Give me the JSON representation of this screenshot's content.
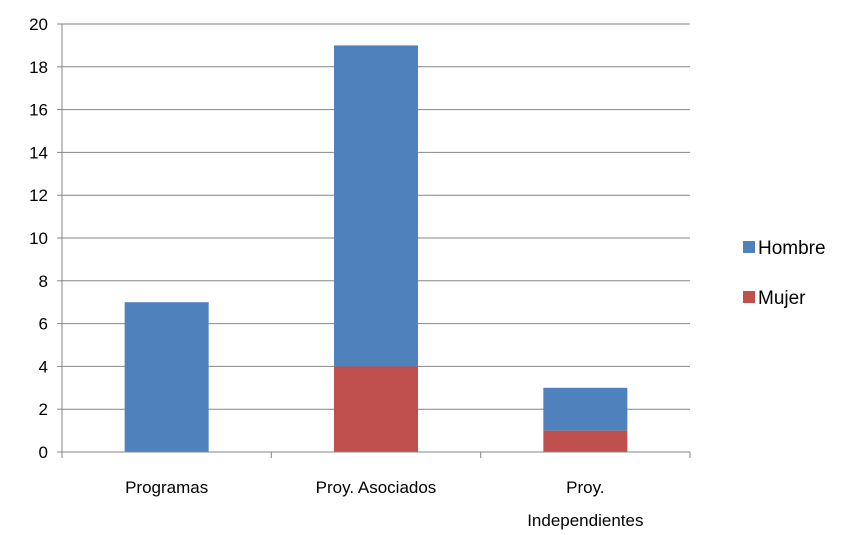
{
  "chart_data": {
    "type": "bar",
    "stacked": true,
    "categories": [
      [
        "Programas"
      ],
      [
        "Proy. Asociados"
      ],
      [
        "Proy.",
        "Independientes"
      ]
    ],
    "series": [
      {
        "name": "Mujer",
        "values": [
          0,
          4,
          1
        ],
        "color": "#C0504D"
      },
      {
        "name": "Hombre",
        "values": [
          7,
          15,
          2
        ],
        "color": "#4F81BD"
      }
    ],
    "legend_order": [
      "Hombre",
      "Mujer"
    ],
    "ylim": [
      0,
      20
    ],
    "yticks": [
      0,
      2,
      4,
      6,
      8,
      10,
      12,
      14,
      16,
      18,
      20
    ],
    "grid": true,
    "legend_position": "right",
    "title": "",
    "xlabel": "",
    "ylabel": ""
  }
}
